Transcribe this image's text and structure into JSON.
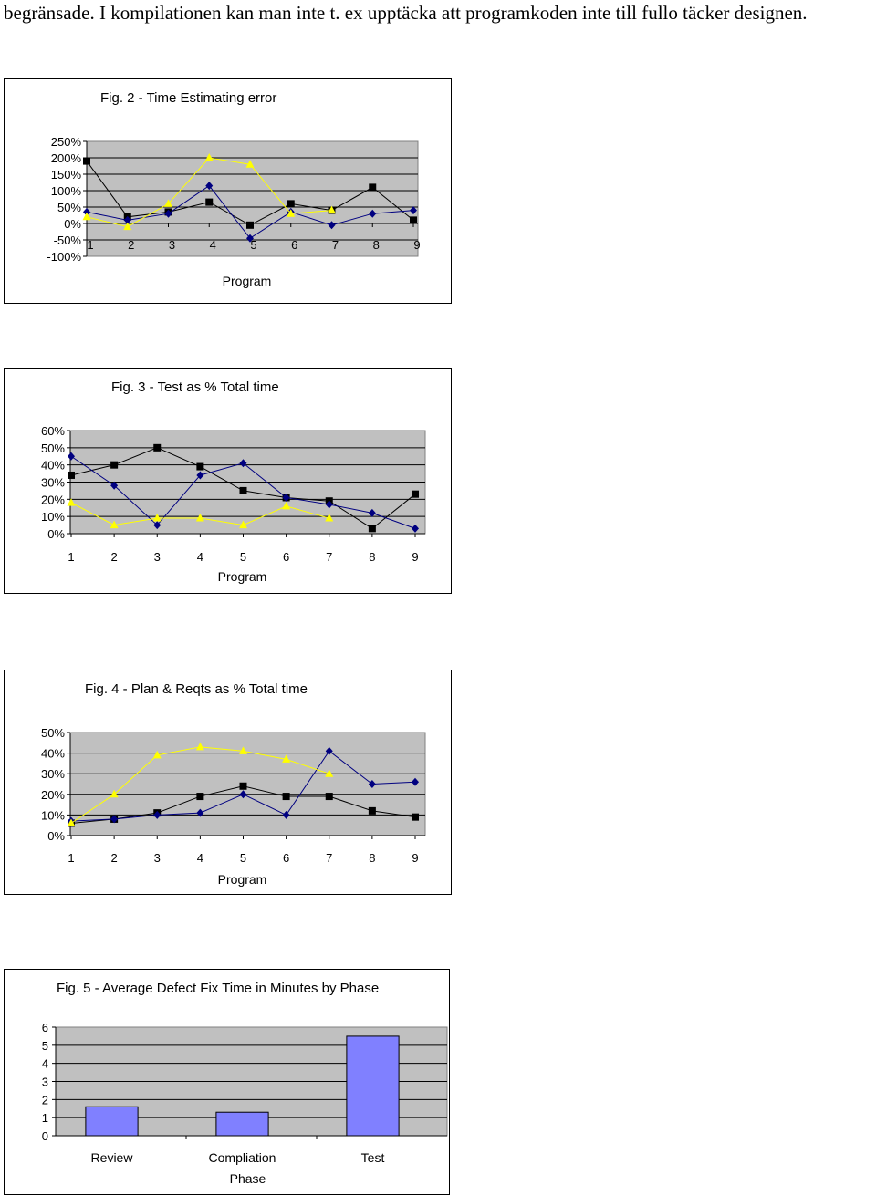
{
  "document": {
    "intro_text": "begränsade. I kompilationen kan man inte t. ex upptäcka att programkoden inte till fullo täcker designen."
  },
  "colors": {
    "series_black": "#000000",
    "series_blue": "#000080",
    "series_yellow": "#ffff00",
    "bar_fill": "#8080ff",
    "plot_bg": "#c0c0c0"
  },
  "chart_data": [
    {
      "id": "fig2",
      "type": "line",
      "title": "Fig. 2 - Time Estimating error",
      "xlabel": "Program",
      "ylabel": "",
      "categories": [
        "1",
        "2",
        "3",
        "4",
        "5",
        "6",
        "7",
        "8",
        "9"
      ],
      "y_ticks": [
        "250%",
        "200%",
        "150%",
        "100%",
        "50%",
        "0%",
        "-50%",
        "-100%"
      ],
      "ylim": [
        -100,
        250
      ],
      "grid": true,
      "series": [
        {
          "color": "black",
          "marker": "square",
          "values": [
            190,
            20,
            35,
            65,
            -5,
            60,
            40,
            110,
            10
          ]
        },
        {
          "color": "blue",
          "marker": "diamond",
          "values": [
            35,
            10,
            30,
            115,
            -45,
            35,
            -5,
            30,
            40
          ]
        },
        {
          "color": "yellow",
          "marker": "triangle",
          "values": [
            20,
            -10,
            60,
            200,
            180,
            30,
            40,
            null,
            null
          ]
        }
      ]
    },
    {
      "id": "fig3",
      "type": "line",
      "title": "Fig. 3 - Test as % Total time",
      "xlabel": "Program",
      "ylabel": "",
      "categories": [
        "1",
        "2",
        "3",
        "4",
        "5",
        "6",
        "7",
        "8",
        "9"
      ],
      "y_ticks": [
        "60%",
        "50%",
        "40%",
        "30%",
        "20%",
        "10%",
        "0%"
      ],
      "ylim": [
        0,
        60
      ],
      "grid": true,
      "series": [
        {
          "color": "black",
          "marker": "square",
          "values": [
            34,
            40,
            50,
            39,
            25,
            21,
            19,
            3,
            23
          ]
        },
        {
          "color": "blue",
          "marker": "diamond",
          "values": [
            45,
            28,
            5,
            34,
            41,
            21,
            17,
            12,
            3
          ]
        },
        {
          "color": "yellow",
          "marker": "triangle",
          "values": [
            18,
            5,
            9,
            9,
            5,
            16,
            9,
            null,
            null
          ]
        }
      ]
    },
    {
      "id": "fig4",
      "type": "line",
      "title": "Fig. 4 - Plan & Reqts as % Total time",
      "xlabel": "Program",
      "ylabel": "",
      "categories": [
        "1",
        "2",
        "3",
        "4",
        "5",
        "6",
        "7",
        "8",
        "9"
      ],
      "y_ticks": [
        "50%",
        "40%",
        "30%",
        "20%",
        "10%",
        "0%"
      ],
      "ylim": [
        0,
        50
      ],
      "grid": true,
      "series": [
        {
          "color": "black",
          "marker": "square",
          "values": [
            6,
            8,
            11,
            19,
            24,
            19,
            19,
            12,
            9
          ]
        },
        {
          "color": "blue",
          "marker": "diamond",
          "values": [
            7,
            8,
            10,
            11,
            20,
            10,
            41,
            25,
            26
          ]
        },
        {
          "color": "yellow",
          "marker": "triangle",
          "values": [
            6,
            20,
            39,
            43,
            41,
            37,
            30,
            null,
            null
          ]
        }
      ]
    },
    {
      "id": "fig5",
      "type": "bar",
      "title": "Fig. 5 - Average Defect Fix Time in Minutes by Phase",
      "xlabel": "Phase",
      "ylabel": "",
      "categories": [
        "Review",
        "Compliation",
        "Test"
      ],
      "values": [
        1.6,
        1.3,
        5.5
      ],
      "y_ticks": [
        "6",
        "5",
        "4",
        "3",
        "2",
        "1",
        "0"
      ],
      "ylim": [
        0,
        6
      ],
      "grid": true
    }
  ]
}
